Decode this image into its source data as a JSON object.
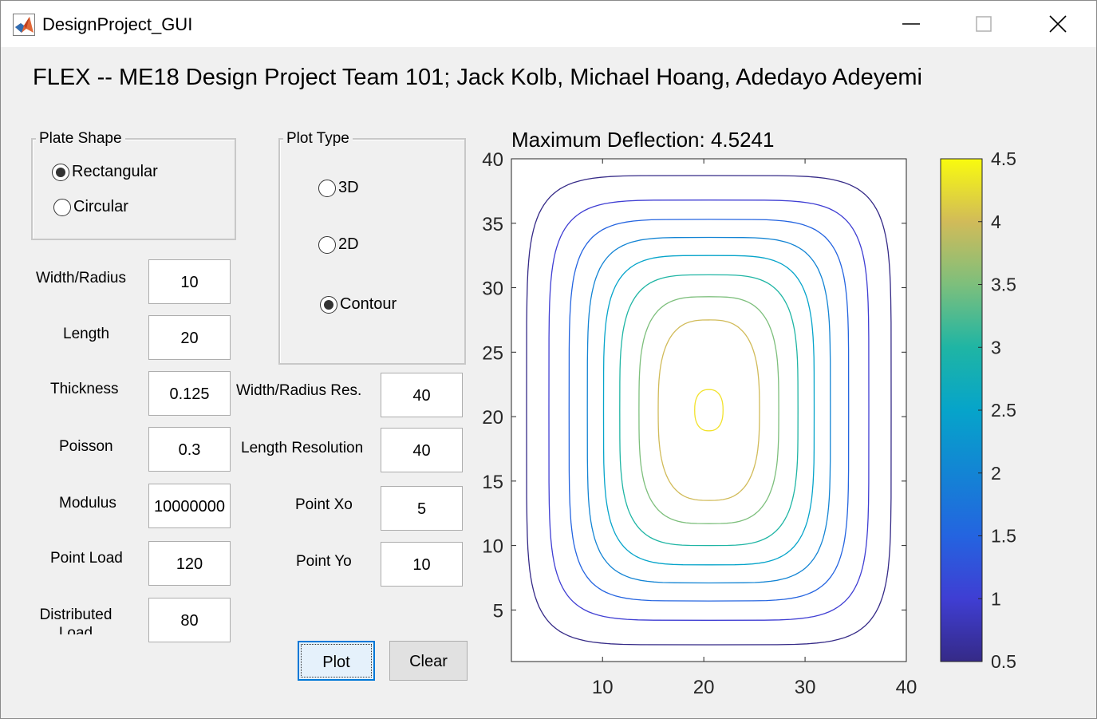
{
  "window": {
    "title": "DesignProject_GUI"
  },
  "header": {
    "title": "FLEX -- ME18 Design Project Team 101; Jack Kolb, Michael Hoang, Adedayo Adeyemi"
  },
  "plate_shape": {
    "title": "Plate Shape",
    "options": [
      {
        "label": "Rectangular",
        "selected": true
      },
      {
        "label": "Circular",
        "selected": false
      }
    ]
  },
  "plot_type": {
    "title": "Plot Type",
    "options": [
      {
        "label": "3D",
        "selected": false
      },
      {
        "label": "2D",
        "selected": false
      },
      {
        "label": "Contour",
        "selected": true
      }
    ]
  },
  "inputs": {
    "width_radius": {
      "label": "Width/Radius",
      "value": "10"
    },
    "length": {
      "label": "Length",
      "value": "20"
    },
    "thickness": {
      "label": "Thickness",
      "value": "0.125"
    },
    "poisson": {
      "label": "Poisson",
      "value": "0.3"
    },
    "modulus": {
      "label": "Modulus",
      "value": "10000000"
    },
    "point_load": {
      "label": "Point Load",
      "value": "120"
    },
    "distributed_load": {
      "label": "Distributed Load",
      "value": "80"
    },
    "width_radius_res": {
      "label": "Width/Radius Res.",
      "value": "40"
    },
    "length_resolution": {
      "label": "Length Resolution",
      "value": "40"
    },
    "point_xo": {
      "label": "Point Xo",
      "value": "5"
    },
    "point_yo": {
      "label": "Point Yo",
      "value": "10"
    }
  },
  "buttons": {
    "plot": "Plot",
    "clear": "Clear"
  },
  "chart_data": {
    "type": "contour",
    "title": "Maximum Deflection: 4.5241",
    "xlim": [
      1,
      40
    ],
    "ylim": [
      1,
      40
    ],
    "x_ticks": [
      10,
      20,
      30,
      40
    ],
    "y_ticks": [
      5,
      10,
      15,
      20,
      25,
      30,
      35,
      40
    ],
    "center": [
      20.5,
      20.5
    ],
    "levels": [
      {
        "value": 0.5,
        "half_width": 18.0,
        "half_height": 18.2,
        "color": "#352a87"
      },
      {
        "value": 1.0,
        "half_width": 15.8,
        "half_height": 16.3,
        "color": "#3f3ed3"
      },
      {
        "value": 1.5,
        "half_width": 13.8,
        "half_height": 14.8,
        "color": "#2464e0"
      },
      {
        "value": 2.0,
        "half_width": 12.0,
        "half_height": 13.4,
        "color": "#1384d4"
      },
      {
        "value": 2.5,
        "half_width": 10.4,
        "half_height": 12.0,
        "color": "#06a4ca"
      },
      {
        "value": 3.0,
        "half_width": 8.8,
        "half_height": 10.5,
        "color": "#1fb5a4"
      },
      {
        "value": 3.5,
        "half_width": 6.9,
        "half_height": 8.8,
        "color": "#7dbf7c"
      },
      {
        "value": 4.0,
        "half_width": 5.0,
        "half_height": 7.0,
        "color": "#d1bb59"
      },
      {
        "value": 4.5,
        "half_width": 1.4,
        "half_height": 1.6,
        "color": "#f2e22c"
      }
    ],
    "colorbar": {
      "range": [
        0.5,
        4.5
      ],
      "ticks": [
        0.5,
        1,
        1.5,
        2,
        2.5,
        3,
        3.5,
        4,
        4.5
      ],
      "colors": [
        "#352a87",
        "#3f3ed3",
        "#2464e0",
        "#1384d4",
        "#06a4ca",
        "#1fb5a4",
        "#7dbf7c",
        "#d1bb59",
        "#f9fb0e"
      ]
    }
  }
}
